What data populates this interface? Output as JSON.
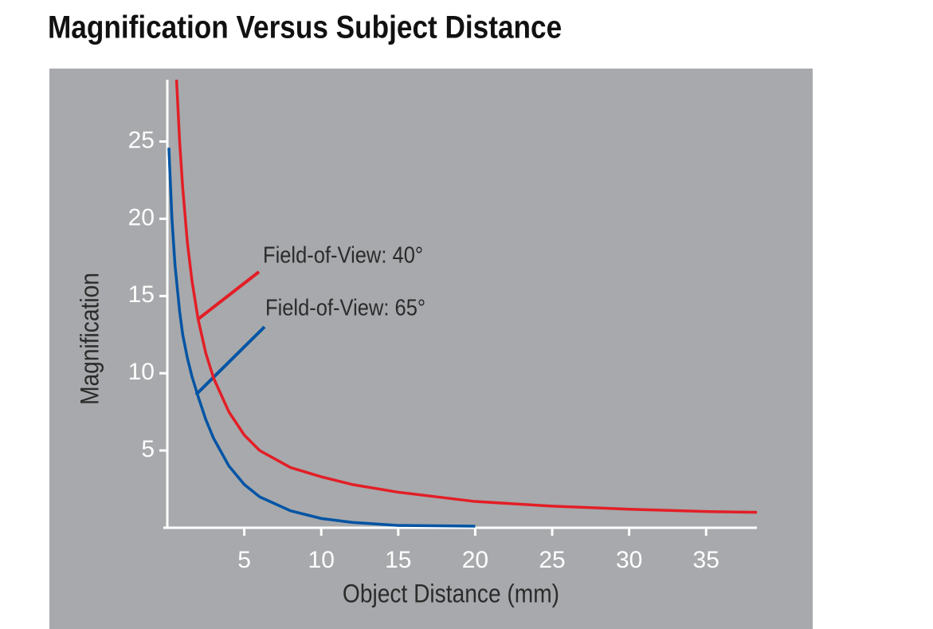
{
  "chart_data": {
    "type": "line",
    "title": "Magnification Versus Subject Distance",
    "x_label": "Object Distance (mm)",
    "y_label": "Magnification",
    "xlim": [
      0,
      38.3
    ],
    "ylim": [
      0,
      29
    ],
    "xticks": [
      5,
      10,
      15,
      20,
      25,
      30,
      35
    ],
    "yticks": [
      5,
      10,
      15,
      20,
      25
    ],
    "series": [
      {
        "name": "Field-of-View: 40°",
        "color": "#e31e26",
        "x": [
          0.6,
          0.8,
          1,
          1.3,
          1.6,
          2,
          2.5,
          3,
          4,
          5,
          6,
          8,
          10,
          12,
          15,
          20,
          25,
          30,
          35,
          38.3
        ],
        "values": [
          29,
          25,
          22,
          18.5,
          16,
          13.5,
          11.3,
          9.7,
          7.5,
          6,
          5,
          3.9,
          3.3,
          2.8,
          2.3,
          1.7,
          1.4,
          1.2,
          1.05,
          1.0
        ]
      },
      {
        "name": "Field-of-View: 65°",
        "color": "#0054a4",
        "x": [
          0.1,
          0.3,
          0.5,
          0.8,
          1,
          1.3,
          1.6,
          2,
          2.5,
          3,
          4,
          5,
          6,
          8,
          10,
          12,
          15,
          20
        ],
        "values": [
          24.6,
          20,
          17,
          14,
          12.5,
          11,
          9.8,
          8.5,
          7,
          5.8,
          4,
          2.8,
          2,
          1.1,
          0.6,
          0.35,
          0.15,
          0.1
        ]
      }
    ]
  }
}
